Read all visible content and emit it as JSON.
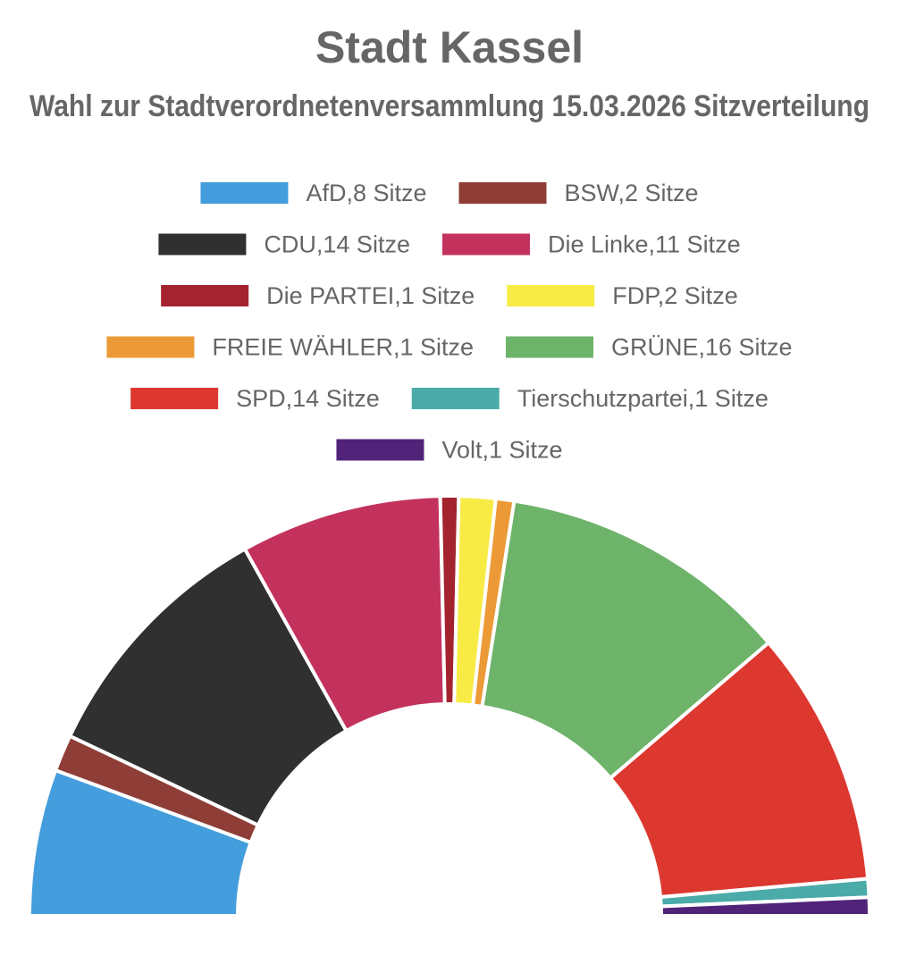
{
  "chart_data": {
    "type": "pie",
    "variant": "half-donut",
    "title": "Stadt Kassel",
    "subtitle": "Wahl zur Stadtverordnetenversammlung 15.03.2026 Sitzverteilung",
    "legend_position": "top",
    "series": [
      {
        "name": "AfD,8 Sitze",
        "value": 8,
        "color": "#449ddc"
      },
      {
        "name": "BSW,2 Sitze",
        "value": 2,
        "color": "#8f3e37"
      },
      {
        "name": "CDU,14 Sitze",
        "value": 14,
        "color": "#303030"
      },
      {
        "name": "Die Linke,11 Sitze",
        "value": 11,
        "color": "#c3325d"
      },
      {
        "name": "Die PARTEI,1 Sitze",
        "value": 1,
        "color": "#a3232f"
      },
      {
        "name": "FDP,2 Sitze",
        "value": 2,
        "color": "#f8eb45"
      },
      {
        "name": "FREIE WÄHLER,1 Sitze",
        "value": 1,
        "color": "#ec9a37"
      },
      {
        "name": "GRÜNE,16 Sitze",
        "value": 16,
        "color": "#6db36a"
      },
      {
        "name": "SPD,14 Sitze",
        "value": 14,
        "color": "#dc3830"
      },
      {
        "name": "Tierschutzpartei,1 Sitze",
        "value": 1,
        "color": "#4aaba9"
      },
      {
        "name": "Volt,1 Sitze",
        "value": 1,
        "color": "#502379"
      }
    ]
  }
}
